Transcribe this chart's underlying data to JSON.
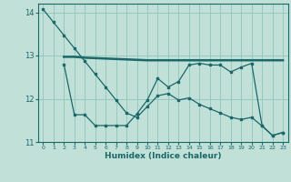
{
  "background_color": "#c0e0d8",
  "grid_color": "#98c8c0",
  "line_color": "#1a6868",
  "xlabel": "Humidex (Indice chaleur)",
  "xlim": [
    -0.5,
    23.5
  ],
  "ylim": [
    11.0,
    14.2
  ],
  "yticks": [
    11,
    12,
    13,
    14
  ],
  "xticks": [
    0,
    1,
    2,
    3,
    4,
    5,
    6,
    7,
    8,
    9,
    10,
    11,
    12,
    13,
    14,
    15,
    16,
    17,
    18,
    19,
    20,
    21,
    22,
    23
  ],
  "line1_x": [
    0,
    1,
    2,
    3,
    4,
    5,
    6,
    7,
    8,
    9,
    10,
    11,
    12,
    13,
    14,
    15,
    16,
    17,
    18,
    19,
    20,
    21,
    22,
    23
  ],
  "line1_y": [
    14.07,
    13.77,
    13.47,
    13.17,
    12.87,
    12.57,
    12.27,
    11.97,
    11.67,
    11.57,
    11.82,
    12.07,
    12.12,
    11.97,
    12.02,
    11.87,
    11.77,
    11.67,
    11.57,
    11.52,
    11.57,
    11.37,
    11.15,
    11.22
  ],
  "line2_x": [
    2,
    3,
    4,
    5,
    6,
    7,
    8,
    9,
    10,
    11,
    12,
    13,
    14,
    15,
    16,
    17,
    18,
    19,
    20,
    21,
    22,
    23
  ],
  "line2_y": [
    12.8,
    11.63,
    11.63,
    11.38,
    11.38,
    11.38,
    11.38,
    11.65,
    11.97,
    12.47,
    12.27,
    12.4,
    12.78,
    12.82,
    12.78,
    12.78,
    12.62,
    12.73,
    12.82,
    11.38,
    11.15,
    11.22
  ],
  "line3_x": [
    2,
    3,
    4,
    5,
    6,
    7,
    8,
    9,
    10,
    11,
    12,
    13,
    14,
    15,
    16,
    17,
    18,
    19,
    20,
    21,
    22,
    23
  ],
  "line3_y": [
    12.97,
    12.97,
    12.95,
    12.94,
    12.93,
    12.92,
    12.91,
    12.9,
    12.89,
    12.89,
    12.89,
    12.89,
    12.89,
    12.89,
    12.89,
    12.89,
    12.89,
    12.89,
    12.89,
    12.89,
    12.89,
    12.89
  ]
}
